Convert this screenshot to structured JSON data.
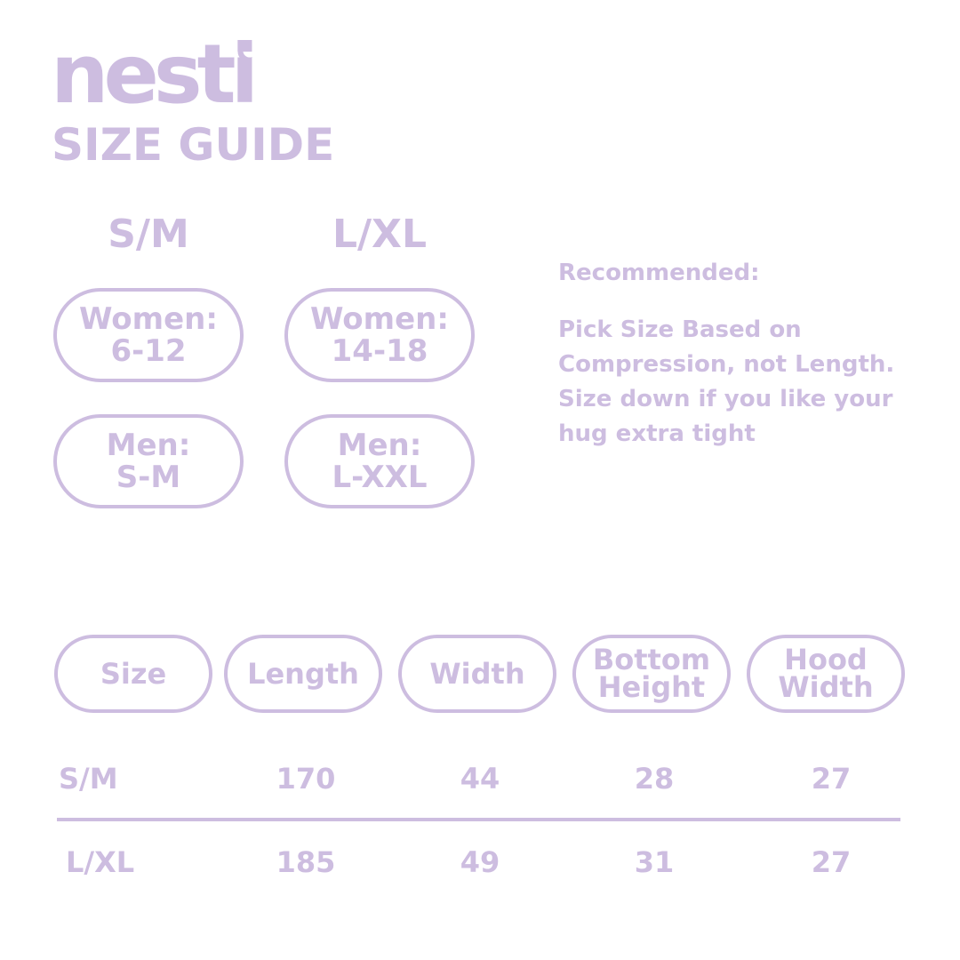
{
  "brand": {
    "logo_text": "nesti",
    "title": "SIZE GUIDE",
    "accent_color": "#cdbde0"
  },
  "sizes": [
    {
      "label": "S/M",
      "women_label": "Women:",
      "women_value": "6-12",
      "men_label": "Men:",
      "men_value": "S-M"
    },
    {
      "label": "L/XL",
      "women_label": "Women:",
      "women_value": "14-18",
      "men_label": "Men:",
      "men_value": "L-XXL"
    }
  ],
  "recommendation": {
    "heading": "Recommended:",
    "body": "Pick Size Based on Compression, not Length. Size down if you like your hug extra tight"
  },
  "table": {
    "headers": [
      {
        "line1": "Size",
        "line2": ""
      },
      {
        "line1": "Length",
        "line2": ""
      },
      {
        "line1": "Width",
        "line2": ""
      },
      {
        "line1": "Bottom",
        "line2": "Height"
      },
      {
        "line1": "Hood",
        "line2": "Width"
      }
    ],
    "rows": [
      {
        "size": "S/M",
        "length": "170",
        "width": "44",
        "bottom_height": "28",
        "hood_width": "27"
      },
      {
        "size": "L/XL",
        "length": "185",
        "width": "49",
        "bottom_height": "31",
        "hood_width": "27"
      }
    ]
  }
}
